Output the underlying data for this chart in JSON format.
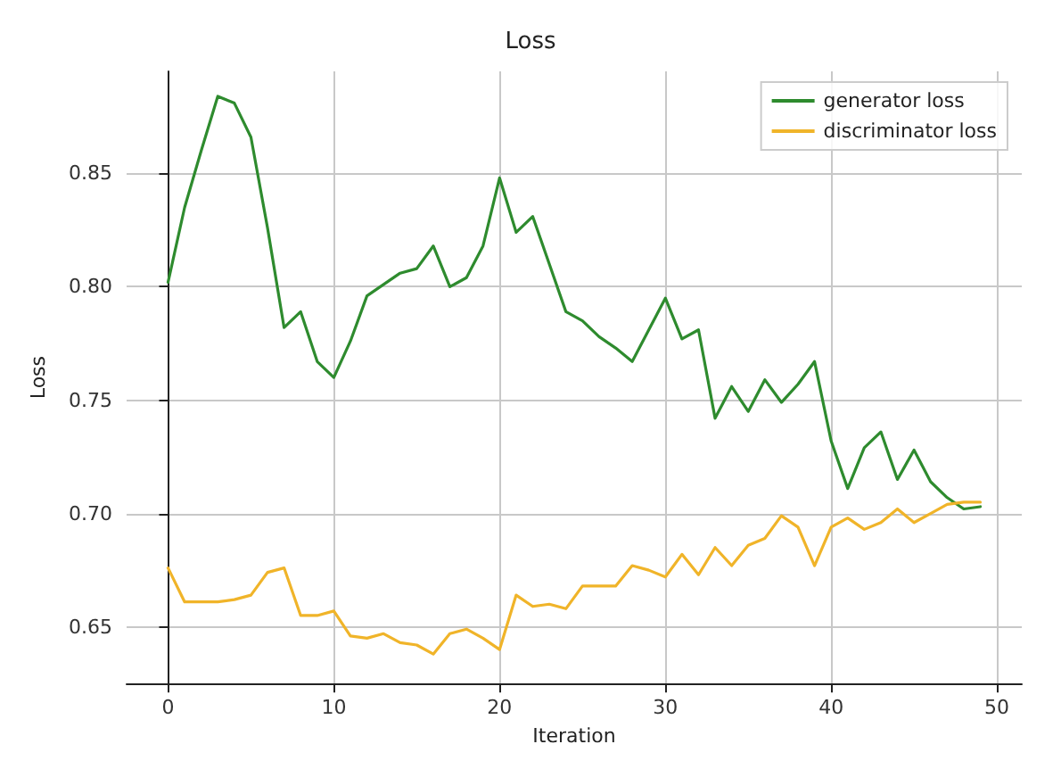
{
  "chart_data": {
    "type": "line",
    "title": "Loss",
    "xlabel": "Iteration",
    "ylabel": "Loss",
    "x": [
      0,
      1,
      2,
      3,
      4,
      5,
      6,
      7,
      8,
      9,
      10,
      11,
      12,
      13,
      14,
      15,
      16,
      17,
      18,
      19,
      20,
      21,
      22,
      23,
      24,
      25,
      26,
      27,
      28,
      29,
      30,
      31,
      32,
      33,
      34,
      35,
      36,
      37,
      38,
      39,
      40,
      41,
      42,
      43,
      44,
      45,
      46,
      47,
      48,
      49
    ],
    "series": [
      {
        "name": "generator loss",
        "color": "#2e8b2e",
        "values": [
          0.802,
          0.835,
          0.86,
          0.884,
          0.881,
          0.866,
          0.826,
          0.782,
          0.789,
          0.767,
          0.76,
          0.776,
          0.796,
          0.801,
          0.806,
          0.808,
          0.818,
          0.8,
          0.804,
          0.818,
          0.848,
          0.824,
          0.831,
          0.81,
          0.789,
          0.785,
          0.778,
          0.773,
          0.767,
          0.781,
          0.795,
          0.777,
          0.781,
          0.742,
          0.756,
          0.745,
          0.759,
          0.749,
          0.757,
          0.767,
          0.732,
          0.711,
          0.729,
          0.736,
          0.715,
          0.728,
          0.714,
          0.707,
          0.702,
          0.703
        ]
      },
      {
        "name": "discriminator loss",
        "color": "#f0b429",
        "values": [
          0.676,
          0.661,
          0.661,
          0.661,
          0.662,
          0.664,
          0.674,
          0.676,
          0.655,
          0.655,
          0.657,
          0.646,
          0.645,
          0.647,
          0.643,
          0.642,
          0.638,
          0.647,
          0.649,
          0.645,
          0.64,
          0.664,
          0.659,
          0.66,
          0.658,
          0.668,
          0.668,
          0.668,
          0.677,
          0.675,
          0.672,
          0.682,
          0.673,
          0.685,
          0.677,
          0.686,
          0.689,
          0.699,
          0.694,
          0.677,
          0.694,
          0.698,
          0.693,
          0.696,
          0.702,
          0.696,
          0.7,
          0.704,
          0.705,
          0.705
        ]
      }
    ],
    "xlim": [
      -2.5,
      51.5
    ],
    "ylim": [
      0.625,
      0.895
    ],
    "xticks": [
      0,
      10,
      20,
      30,
      40,
      50
    ],
    "yticks": [
      0.65,
      {
        "value": 0.7,
        "label": "0.70"
      },
      0.75,
      {
        "value": 0.8,
        "label": "0.80"
      },
      0.85
    ],
    "grid": true,
    "legend": "top right",
    "line_style": "solid",
    "marker": "none"
  }
}
